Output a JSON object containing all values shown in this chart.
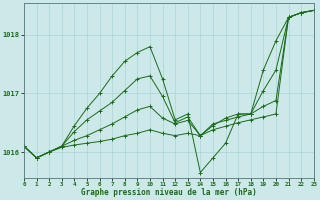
{
  "title": "Graphe pression niveau de la mer (hPa)",
  "bg_color": "#cce8e8",
  "grid_color": "#aad4d4",
  "line_color": "#1a6b1a",
  "xlim": [
    0,
    23
  ],
  "ylim": [
    1015.55,
    1018.55
  ],
  "yticks": [
    1016,
    1017,
    1018
  ],
  "xticks": [
    0,
    1,
    2,
    3,
    4,
    5,
    6,
    7,
    8,
    9,
    10,
    11,
    12,
    13,
    14,
    15,
    16,
    17,
    18,
    19,
    20,
    21,
    22,
    23
  ],
  "series": [
    [
      1016.1,
      1015.9,
      1016.0,
      1016.1,
      1016.45,
      1016.75,
      1017.0,
      1017.3,
      1017.55,
      1017.7,
      1017.8,
      1017.25,
      1016.55,
      1016.65,
      1015.65,
      1015.9,
      1016.15,
      1016.65,
      1016.65,
      1017.4,
      1017.9,
      1018.3,
      1018.38,
      1018.42
    ],
    [
      1016.1,
      1015.9,
      1016.0,
      1016.1,
      1016.35,
      1016.55,
      1016.7,
      1016.85,
      1017.05,
      1017.25,
      1017.3,
      1016.95,
      1016.5,
      1016.6,
      1016.28,
      1016.45,
      1016.58,
      1016.65,
      1016.65,
      1017.05,
      1017.4,
      1018.3,
      1018.38,
      1018.42
    ],
    [
      1016.1,
      1015.9,
      1016.0,
      1016.1,
      1016.2,
      1016.28,
      1016.38,
      1016.48,
      1016.6,
      1016.72,
      1016.78,
      1016.58,
      1016.48,
      1016.54,
      1016.28,
      1016.48,
      1016.54,
      1016.6,
      1016.65,
      1016.78,
      1016.88,
      1018.3,
      1018.38,
      1018.42
    ],
    [
      1016.1,
      1015.9,
      1016.0,
      1016.08,
      1016.12,
      1016.15,
      1016.18,
      1016.22,
      1016.28,
      1016.32,
      1016.38,
      1016.32,
      1016.28,
      1016.32,
      1016.28,
      1016.38,
      1016.44,
      1016.5,
      1016.55,
      1016.6,
      1016.65,
      1018.3,
      1018.38,
      1018.42
    ]
  ]
}
